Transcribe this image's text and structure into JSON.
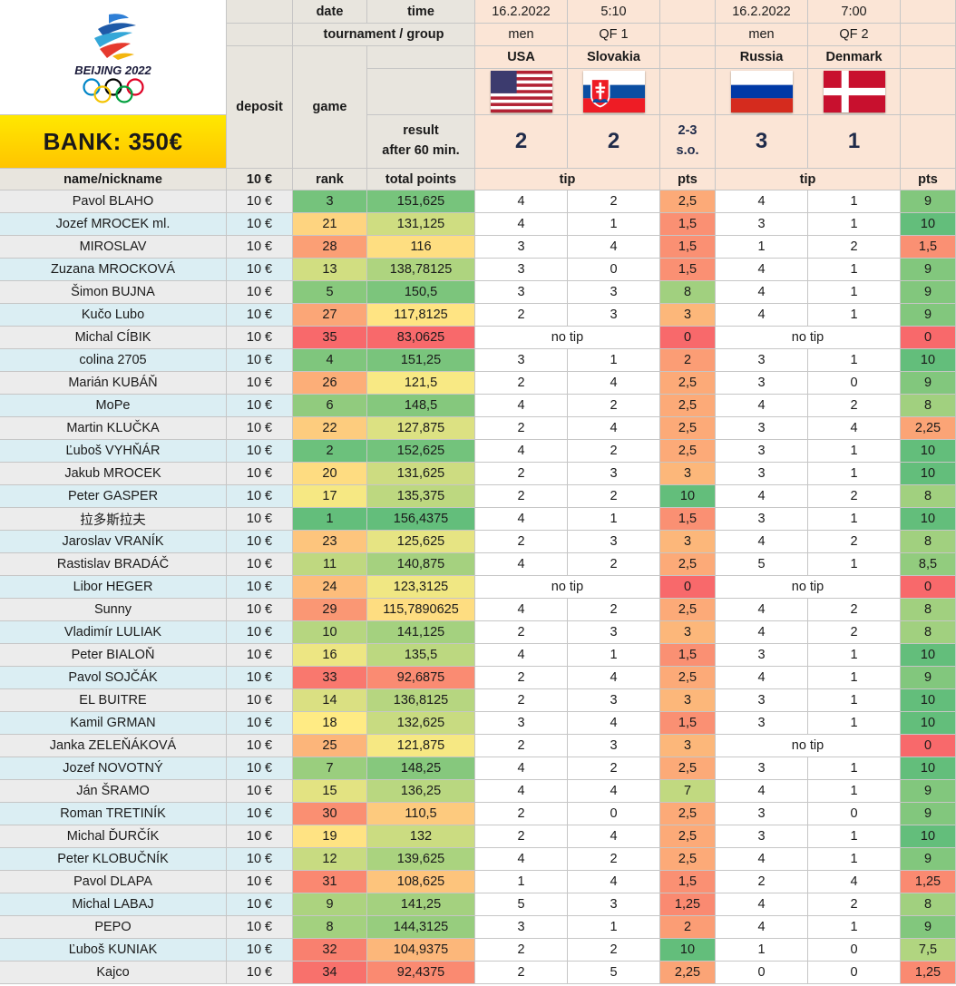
{
  "logo": {
    "text": "BEIJING 2022",
    "rings_icon": "olympic-rings-icon"
  },
  "bank_label": "BANK: 350€",
  "header": {
    "date_label": "date",
    "time_label": "time",
    "tournament_label": "tournament / group",
    "deposit_label": "deposit",
    "game_label": "game",
    "result_line1": "result",
    "result_line2": "after 60 min.",
    "name_label": "name/nickname",
    "deposit_value_label": "10 €",
    "rank_label": "rank",
    "total_label": "total points",
    "tip_label": "tip",
    "pts_label": "pts"
  },
  "matches": [
    {
      "date": "16.2.2022",
      "time": "5:10",
      "category": "men",
      "group": "QF 1",
      "team1": "USA",
      "team2": "Slovakia",
      "flag1": "usa-flag",
      "flag2": "slovakia-flag",
      "score1": "2",
      "score2": "2",
      "note1": "2-3",
      "note2": "s.o."
    },
    {
      "date": "16.2.2022",
      "time": "7:00",
      "category": "men",
      "group": "QF 2",
      "team1": "Russia",
      "team2": "Denmark",
      "flag1": "russia-flag",
      "flag2": "denmark-flag",
      "score1": "3",
      "score2": "1",
      "note1": "",
      "note2": ""
    }
  ],
  "no_tip_label": "no tip",
  "colors": {
    "scale_red": "#f8696b",
    "scale_yellow": "#ffeb84",
    "scale_green": "#63be7b",
    "header_gray": "#e8e5de",
    "header_peach": "#fbe5d6",
    "row_gray": "#ececec",
    "row_blue": "#dbeef3"
  },
  "players": [
    {
      "name": "Pavol BLAHO",
      "deposit": "10 €",
      "rank": "3",
      "total": "151,625",
      "m1": [
        "4",
        "2"
      ],
      "p1": "2,5",
      "m2": [
        "4",
        "1"
      ],
      "p2": "9"
    },
    {
      "name": "Jozef MROCEK ml.",
      "deposit": "10 €",
      "rank": "21",
      "total": "131,125",
      "m1": [
        "4",
        "1"
      ],
      "p1": "1,5",
      "m2": [
        "3",
        "1"
      ],
      "p2": "10"
    },
    {
      "name": "MIROSLAV",
      "deposit": "10 €",
      "rank": "28",
      "total": "116",
      "m1": [
        "3",
        "4"
      ],
      "p1": "1,5",
      "m2": [
        "1",
        "2"
      ],
      "p2": "1,5"
    },
    {
      "name": "Zuzana MROCKOVÁ",
      "deposit": "10 €",
      "rank": "13",
      "total": "138,78125",
      "m1": [
        "3",
        "0"
      ],
      "p1": "1,5",
      "m2": [
        "4",
        "1"
      ],
      "p2": "9"
    },
    {
      "name": "Šimon BUJNA",
      "deposit": "10 €",
      "rank": "5",
      "total": "150,5",
      "m1": [
        "3",
        "3"
      ],
      "p1": "8",
      "m2": [
        "4",
        "1"
      ],
      "p2": "9"
    },
    {
      "name": "Kučo Lubo",
      "deposit": "10 €",
      "rank": "27",
      "total": "117,8125",
      "m1": [
        "2",
        "3"
      ],
      "p1": "3",
      "m2": [
        "4",
        "1"
      ],
      "p2": "9"
    },
    {
      "name": "Michal CÍBIK",
      "deposit": "10 €",
      "rank": "35",
      "total": "83,0625",
      "m1": null,
      "p1": "0",
      "m2": null,
      "p2": "0"
    },
    {
      "name": "colina 2705",
      "deposit": "10 €",
      "rank": "4",
      "total": "151,25",
      "m1": [
        "3",
        "1"
      ],
      "p1": "2",
      "m2": [
        "3",
        "1"
      ],
      "p2": "10"
    },
    {
      "name": "Marián KUBÁŇ",
      "deposit": "10 €",
      "rank": "26",
      "total": "121,5",
      "m1": [
        "2",
        "4"
      ],
      "p1": "2,5",
      "m2": [
        "3",
        "0"
      ],
      "p2": "9"
    },
    {
      "name": "MoPe",
      "deposit": "10 €",
      "rank": "6",
      "total": "148,5",
      "m1": [
        "4",
        "2"
      ],
      "p1": "2,5",
      "m2": [
        "4",
        "2"
      ],
      "p2": "8"
    },
    {
      "name": "Martin KLUČKA",
      "deposit": "10 €",
      "rank": "22",
      "total": "127,875",
      "m1": [
        "2",
        "4"
      ],
      "p1": "2,5",
      "m2": [
        "3",
        "4"
      ],
      "p2": "2,25"
    },
    {
      "name": "Ľuboš VYHŇÁR",
      "deposit": "10 €",
      "rank": "2",
      "total": "152,625",
      "m1": [
        "4",
        "2"
      ],
      "p1": "2,5",
      "m2": [
        "3",
        "1"
      ],
      "p2": "10"
    },
    {
      "name": "Jakub MROCEK",
      "deposit": "10 €",
      "rank": "20",
      "total": "131,625",
      "m1": [
        "2",
        "3"
      ],
      "p1": "3",
      "m2": [
        "3",
        "1"
      ],
      "p2": "10"
    },
    {
      "name": "Peter GASPER",
      "deposit": "10 €",
      "rank": "17",
      "total": "135,375",
      "m1": [
        "2",
        "2"
      ],
      "p1": "10",
      "m2": [
        "4",
        "2"
      ],
      "p2": "8"
    },
    {
      "name": "拉多斯拉夫",
      "deposit": "10 €",
      "rank": "1",
      "total": "156,4375",
      "m1": [
        "4",
        "1"
      ],
      "p1": "1,5",
      "m2": [
        "3",
        "1"
      ],
      "p2": "10"
    },
    {
      "name": "Jaroslav VRANÍK",
      "deposit": "10 €",
      "rank": "23",
      "total": "125,625",
      "m1": [
        "2",
        "3"
      ],
      "p1": "3",
      "m2": [
        "4",
        "2"
      ],
      "p2": "8"
    },
    {
      "name": "Rastislav BRADÁČ",
      "deposit": "10 €",
      "rank": "11",
      "total": "140,875",
      "m1": [
        "4",
        "2"
      ],
      "p1": "2,5",
      "m2": [
        "5",
        "1"
      ],
      "p2": "8,5"
    },
    {
      "name": "Libor HEGER",
      "deposit": "10 €",
      "rank": "24",
      "total": "123,3125",
      "m1": null,
      "p1": "0",
      "m2": null,
      "p2": "0"
    },
    {
      "name": "Sunny",
      "deposit": "10 €",
      "rank": "29",
      "total": "115,7890625",
      "m1": [
        "4",
        "2"
      ],
      "p1": "2,5",
      "m2": [
        "4",
        "2"
      ],
      "p2": "8"
    },
    {
      "name": "Vladimír LULIAK",
      "deposit": "10 €",
      "rank": "10",
      "total": "141,125",
      "m1": [
        "2",
        "3"
      ],
      "p1": "3",
      "m2": [
        "4",
        "2"
      ],
      "p2": "8"
    },
    {
      "name": "Peter BIALOŇ",
      "deposit": "10 €",
      "rank": "16",
      "total": "135,5",
      "m1": [
        "4",
        "1"
      ],
      "p1": "1,5",
      "m2": [
        "3",
        "1"
      ],
      "p2": "10"
    },
    {
      "name": "Pavol SOJČÁK",
      "deposit": "10 €",
      "rank": "33",
      "total": "92,6875",
      "m1": [
        "2",
        "4"
      ],
      "p1": "2,5",
      "m2": [
        "4",
        "1"
      ],
      "p2": "9"
    },
    {
      "name": "EL BUITRE",
      "deposit": "10 €",
      "rank": "14",
      "total": "136,8125",
      "m1": [
        "2",
        "3"
      ],
      "p1": "3",
      "m2": [
        "3",
        "1"
      ],
      "p2": "10"
    },
    {
      "name": "Kamil GRMAN",
      "deposit": "10 €",
      "rank": "18",
      "total": "132,625",
      "m1": [
        "3",
        "4"
      ],
      "p1": "1,5",
      "m2": [
        "3",
        "1"
      ],
      "p2": "10"
    },
    {
      "name": "Janka ZELEŇÁKOVÁ",
      "deposit": "10 €",
      "rank": "25",
      "total": "121,875",
      "m1": [
        "2",
        "3"
      ],
      "p1": "3",
      "m2": null,
      "p2": "0"
    },
    {
      "name": "Jozef NOVOTNÝ",
      "deposit": "10 €",
      "rank": "7",
      "total": "148,25",
      "m1": [
        "4",
        "2"
      ],
      "p1": "2,5",
      "m2": [
        "3",
        "1"
      ],
      "p2": "10"
    },
    {
      "name": "Ján ŠRAMO",
      "deposit": "10 €",
      "rank": "15",
      "total": "136,25",
      "m1": [
        "4",
        "4"
      ],
      "p1": "7",
      "m2": [
        "4",
        "1"
      ],
      "p2": "9"
    },
    {
      "name": "Roman TRETINÍK",
      "deposit": "10 €",
      "rank": "30",
      "total": "110,5",
      "m1": [
        "2",
        "0"
      ],
      "p1": "2,5",
      "m2": [
        "3",
        "0"
      ],
      "p2": "9"
    },
    {
      "name": "Michal ĎURČÍK",
      "deposit": "10 €",
      "rank": "19",
      "total": "132",
      "m1": [
        "2",
        "4"
      ],
      "p1": "2,5",
      "m2": [
        "3",
        "1"
      ],
      "p2": "10"
    },
    {
      "name": "Peter KLOBUČNÍK",
      "deposit": "10 €",
      "rank": "12",
      "total": "139,625",
      "m1": [
        "4",
        "2"
      ],
      "p1": "2,5",
      "m2": [
        "4",
        "1"
      ],
      "p2": "9"
    },
    {
      "name": "Pavol DLAPA",
      "deposit": "10 €",
      "rank": "31",
      "total": "108,625",
      "m1": [
        "1",
        "4"
      ],
      "p1": "1,5",
      "m2": [
        "2",
        "4"
      ],
      "p2": "1,25"
    },
    {
      "name": "Michal LABAJ",
      "deposit": "10 €",
      "rank": "9",
      "total": "141,25",
      "m1": [
        "5",
        "3"
      ],
      "p1": "1,25",
      "m2": [
        "4",
        "2"
      ],
      "p2": "8"
    },
    {
      "name": "PEPO",
      "deposit": "10 €",
      "rank": "8",
      "total": "144,3125",
      "m1": [
        "3",
        "1"
      ],
      "p1": "2",
      "m2": [
        "4",
        "1"
      ],
      "p2": "9"
    },
    {
      "name": "Ľuboš KUNIAK",
      "deposit": "10 €",
      "rank": "32",
      "total": "104,9375",
      "m1": [
        "2",
        "2"
      ],
      "p1": "10",
      "m2": [
        "1",
        "0"
      ],
      "p2": "7,5"
    },
    {
      "name": "Kajco",
      "deposit": "10 €",
      "rank": "34",
      "total": "92,4375",
      "m1": [
        "2",
        "5"
      ],
      "p1": "2,25",
      "m2": [
        "0",
        "0"
      ],
      "p2": "1,25"
    }
  ]
}
